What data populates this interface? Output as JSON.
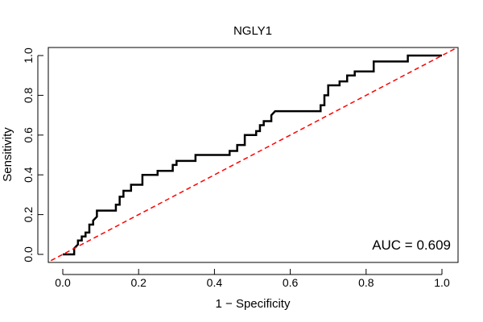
{
  "chart_data": {
    "type": "line",
    "title": "NGLY1",
    "xlabel": "1 − Specificity",
    "ylabel": "Sensitivity",
    "xlim": [
      0,
      1
    ],
    "ylim": [
      0,
      1
    ],
    "x_ticks": [
      "0.0",
      "0.2",
      "0.4",
      "0.6",
      "0.8",
      "1.0"
    ],
    "y_ticks": [
      "0.0",
      "0.2",
      "0.4",
      "0.6",
      "0.8",
      "1.0"
    ],
    "annotation": "AUC = 0.609",
    "grid": false,
    "series": [
      {
        "style": "solid",
        "color": "#000000",
        "points": [
          [
            0.0,
            0.0
          ],
          [
            0.03,
            0.0
          ],
          [
            0.03,
            0.03
          ],
          [
            0.04,
            0.05
          ],
          [
            0.04,
            0.07
          ],
          [
            0.05,
            0.07
          ],
          [
            0.05,
            0.09
          ],
          [
            0.06,
            0.09
          ],
          [
            0.06,
            0.11
          ],
          [
            0.07,
            0.11
          ],
          [
            0.07,
            0.15
          ],
          [
            0.08,
            0.15
          ],
          [
            0.08,
            0.17
          ],
          [
            0.09,
            0.19
          ],
          [
            0.09,
            0.22
          ],
          [
            0.14,
            0.22
          ],
          [
            0.14,
            0.25
          ],
          [
            0.15,
            0.25
          ],
          [
            0.15,
            0.29
          ],
          [
            0.16,
            0.29
          ],
          [
            0.16,
            0.32
          ],
          [
            0.18,
            0.32
          ],
          [
            0.18,
            0.35
          ],
          [
            0.21,
            0.35
          ],
          [
            0.21,
            0.4
          ],
          [
            0.25,
            0.4
          ],
          [
            0.25,
            0.42
          ],
          [
            0.29,
            0.42
          ],
          [
            0.29,
            0.45
          ],
          [
            0.3,
            0.45
          ],
          [
            0.3,
            0.47
          ],
          [
            0.35,
            0.47
          ],
          [
            0.35,
            0.5
          ],
          [
            0.44,
            0.5
          ],
          [
            0.44,
            0.52
          ],
          [
            0.46,
            0.52
          ],
          [
            0.46,
            0.55
          ],
          [
            0.48,
            0.55
          ],
          [
            0.48,
            0.6
          ],
          [
            0.51,
            0.6
          ],
          [
            0.51,
            0.62
          ],
          [
            0.52,
            0.62
          ],
          [
            0.52,
            0.65
          ],
          [
            0.53,
            0.65
          ],
          [
            0.53,
            0.67
          ],
          [
            0.55,
            0.67
          ],
          [
            0.55,
            0.7
          ],
          [
            0.56,
            0.72
          ],
          [
            0.68,
            0.72
          ],
          [
            0.68,
            0.75
          ],
          [
            0.69,
            0.75
          ],
          [
            0.69,
            0.8
          ],
          [
            0.7,
            0.8
          ],
          [
            0.7,
            0.85
          ],
          [
            0.73,
            0.85
          ],
          [
            0.73,
            0.87
          ],
          [
            0.75,
            0.87
          ],
          [
            0.75,
            0.9
          ],
          [
            0.77,
            0.9
          ],
          [
            0.77,
            0.92
          ],
          [
            0.82,
            0.92
          ],
          [
            0.82,
            0.97
          ],
          [
            0.91,
            0.97
          ],
          [
            0.91,
            1.0
          ],
          [
            1.0,
            1.0
          ]
        ]
      },
      {
        "style": "dashed",
        "color": "#ff0000",
        "points": [
          [
            -0.05,
            -0.05
          ],
          [
            1.05,
            1.05
          ]
        ]
      }
    ]
  }
}
